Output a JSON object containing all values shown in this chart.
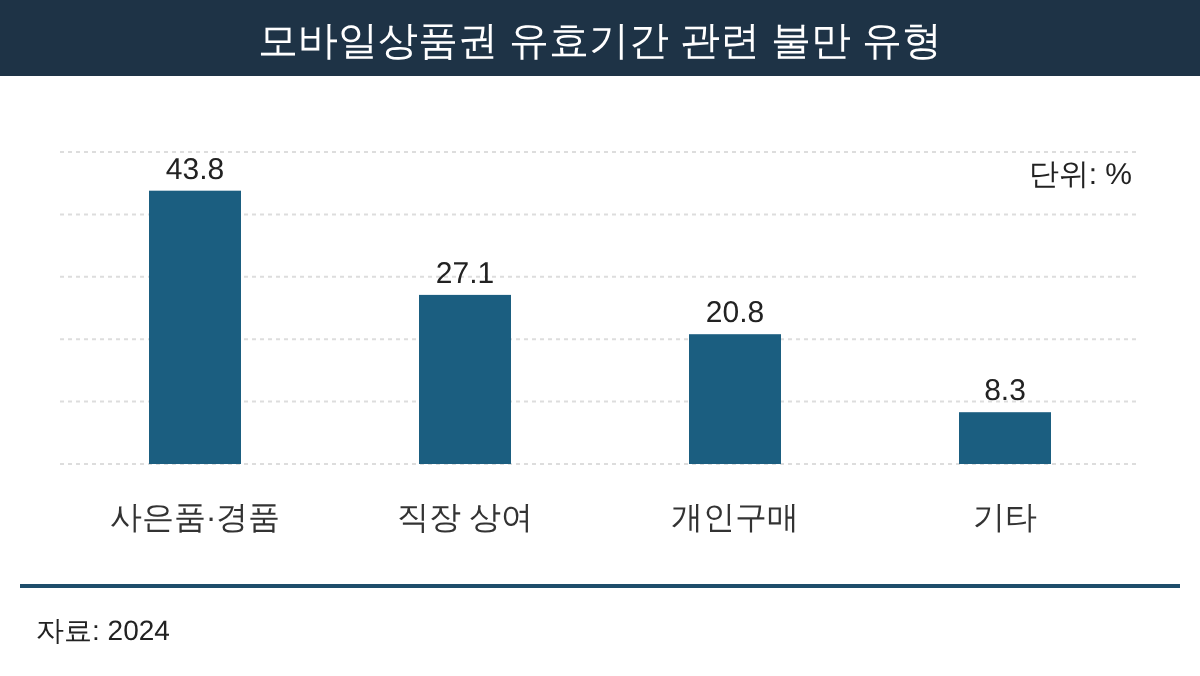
{
  "chart_data": {
    "type": "bar",
    "title": "모바일상품권 유효기간 관련 불만 유형",
    "categories": [
      "사은품·경품",
      "직장 상여",
      "개인구매",
      "기타"
    ],
    "values": [
      43.8,
      27.1,
      20.8,
      8.3
    ],
    "color": "#1b5e80",
    "ylim": [
      0,
      50
    ],
    "yticks": [
      {
        "value": 0,
        "label": null
      },
      {
        "value": 10,
        "label": null
      },
      {
        "value": 20,
        "label": null
      },
      {
        "value": 30,
        "label": null
      },
      {
        "value": 40,
        "label": null
      },
      {
        "value": 50,
        "label": null
      }
    ],
    "grid": "y",
    "data_labels": true,
    "tick_labels": "x",
    "annotations": [
      "단위: %",
      "자료: 2024"
    ]
  }
}
